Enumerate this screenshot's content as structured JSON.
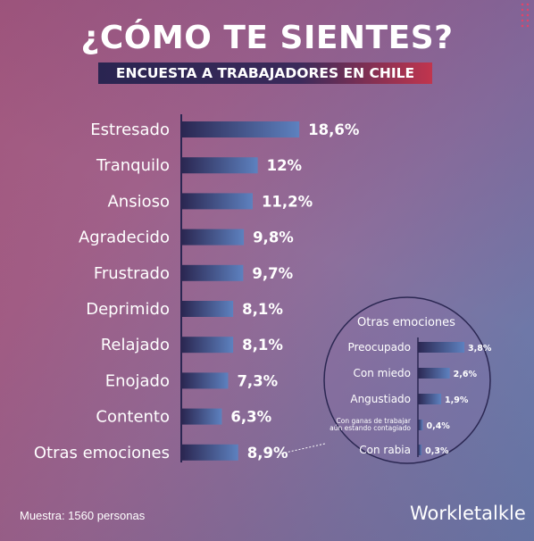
{
  "header": {
    "title": "¿CÓMO TE SIENTES?",
    "subtitle": "ENCUESTA A TRABAJADORES EN CHILE"
  },
  "chart_data": [
    {
      "type": "bar",
      "orientation": "horizontal",
      "categories": [
        "Estresado",
        "Tranquilo",
        "Ansioso",
        "Agradecido",
        "Frustrado",
        "Deprimido",
        "Relajado",
        "Enojado",
        "Contento",
        "Otras emociones"
      ],
      "values": [
        18.6,
        12,
        11.2,
        9.8,
        9.7,
        8.1,
        8.1,
        7.3,
        6.3,
        8.9
      ],
      "value_labels": [
        "18,6%",
        "12%",
        "11,2%",
        "9,8%",
        "9,7%",
        "8,1%",
        "8,1%",
        "7,3%",
        "6,3%",
        "8,9%"
      ],
      "unit": "%"
    },
    {
      "type": "bar",
      "orientation": "horizontal",
      "title": "Otras emociones",
      "categories": [
        "Preocupado",
        "Con miedo",
        "Angustiado",
        "Con ganas de trabajar aún estando contagiado",
        "Con rabia"
      ],
      "category_lines": [
        [
          "Preocupado"
        ],
        [
          "Con miedo"
        ],
        [
          "Angustiado"
        ],
        [
          "Con ganas de trabajar",
          "aún estando contagiado"
        ],
        [
          "Con rabia"
        ]
      ],
      "values": [
        3.8,
        2.6,
        1.9,
        0.4,
        0.3
      ],
      "value_labels": [
        "3,8%",
        "2,6%",
        "1,9%",
        "0,4%",
        "0,3%"
      ],
      "unit": "%"
    }
  ],
  "footer": {
    "sample": "Muestra: 1560 personas",
    "brand": "Workletalkle"
  },
  "colors": {
    "bar_start": "#2b2752",
    "bar_end": "#5d81bf",
    "text": "#ffffff"
  }
}
